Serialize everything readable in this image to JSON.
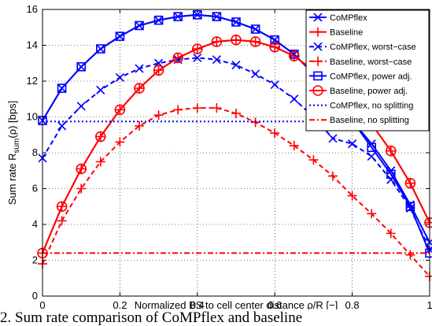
{
  "chart_data": {
    "type": "line",
    "xlabel": "Normalized BS to cell center distance ρ/R [−]",
    "ylabel_main": "Sum rate R",
    "ylabel_sub": "sum",
    "ylabel_tail": "(ρ) [bps]",
    "xlim": [
      0,
      1
    ],
    "ylim": [
      0,
      16
    ],
    "xticks": [
      0,
      0.2,
      0.4,
      0.6,
      0.8,
      1
    ],
    "xtick_labels": [
      "0",
      "0.2",
      "0.4",
      "0.6",
      "0.8",
      "1"
    ],
    "yticks": [
      0,
      2,
      4,
      6,
      8,
      10,
      12,
      14,
      16
    ],
    "ytick_labels": [
      "0",
      "2",
      "4",
      "6",
      "8",
      "10",
      "12",
      "14",
      "16"
    ],
    "grid": true,
    "legend_position": "top-right",
    "series": [
      {
        "name": "CoMPflex",
        "color": "#0000ff",
        "dash": "solid",
        "marker": "x",
        "x": [
          0,
          0.05,
          0.1,
          0.15,
          0.2,
          0.25,
          0.3,
          0.35,
          0.4,
          0.45,
          0.5,
          0.55,
          0.6,
          0.65,
          0.7,
          0.75,
          0.8,
          0.85,
          0.9,
          0.95,
          1.0
        ],
        "y": [
          9.8,
          11.6,
          12.8,
          13.8,
          14.5,
          15.1,
          15.4,
          15.6,
          15.7,
          15.6,
          15.3,
          14.9,
          14.3,
          13.5,
          12.4,
          11.1,
          9.8,
          8.5,
          7.0,
          5.1,
          3.0
        ]
      },
      {
        "name": "Baseline",
        "color": "#ff0000",
        "dash": "solid",
        "marker": "+",
        "x": [
          0,
          0.05,
          0.1,
          0.15,
          0.2,
          0.25,
          0.3,
          0.35,
          0.4,
          0.45,
          0.5,
          0.55,
          0.6,
          0.65,
          0.7,
          0.75,
          0.8,
          0.85,
          0.9,
          0.95,
          1.0
        ],
        "y": [
          2.4,
          5.0,
          7.1,
          8.9,
          10.4,
          11.6,
          12.6,
          13.3,
          13.8,
          14.2,
          14.3,
          14.2,
          13.9,
          13.4,
          12.6,
          11.4,
          10.3,
          9.6,
          8.1,
          6.3,
          4.1
        ]
      },
      {
        "name": "CoMPflex, worst−case",
        "color": "#0000ff",
        "dash": "dash",
        "marker": "x",
        "x": [
          0,
          0.05,
          0.1,
          0.15,
          0.2,
          0.25,
          0.3,
          0.35,
          0.4,
          0.45,
          0.5,
          0.55,
          0.6,
          0.65,
          0.7,
          0.75,
          0.8,
          0.85,
          0.9,
          0.95,
          1.0
        ],
        "y": [
          7.7,
          9.5,
          10.6,
          11.5,
          12.2,
          12.7,
          13.0,
          13.2,
          13.3,
          13.2,
          12.9,
          12.4,
          11.8,
          11.0,
          10.0,
          8.8,
          8.5,
          7.8,
          6.5,
          4.9,
          2.6
        ]
      },
      {
        "name": "Baseline, worst−case",
        "color": "#ff0000",
        "dash": "dash",
        "marker": "+",
        "x": [
          0,
          0.05,
          0.1,
          0.15,
          0.2,
          0.25,
          0.3,
          0.35,
          0.4,
          0.45,
          0.5,
          0.55,
          0.6,
          0.65,
          0.7,
          0.75,
          0.8,
          0.85,
          0.9,
          0.95,
          1.0
        ],
        "y": [
          1.8,
          4.2,
          6.0,
          7.5,
          8.6,
          9.5,
          10.1,
          10.4,
          10.5,
          10.5,
          10.2,
          9.7,
          9.1,
          8.4,
          7.6,
          6.7,
          5.6,
          4.6,
          3.5,
          2.3,
          1.1
        ]
      },
      {
        "name": "CoMPflex, power adj.",
        "color": "#0000ff",
        "dash": "solid",
        "marker": "square",
        "x": [
          0,
          0.05,
          0.1,
          0.15,
          0.2,
          0.25,
          0.3,
          0.35,
          0.4,
          0.45,
          0.5,
          0.55,
          0.6,
          0.65,
          0.7,
          0.75,
          0.8,
          0.85,
          0.9,
          0.95,
          1.0
        ],
        "y": [
          9.8,
          11.6,
          12.8,
          13.8,
          14.5,
          15.1,
          15.4,
          15.6,
          15.7,
          15.6,
          15.3,
          14.9,
          14.3,
          13.5,
          12.4,
          11.1,
          9.8,
          8.3,
          6.8,
          5.0,
          2.4
        ]
      },
      {
        "name": "Baseline, power adj.",
        "color": "#ff0000",
        "dash": "solid",
        "marker": "circle",
        "x": [
          0,
          0.05,
          0.1,
          0.15,
          0.2,
          0.25,
          0.3,
          0.35,
          0.4,
          0.45,
          0.5,
          0.55,
          0.6,
          0.65,
          0.7,
          0.75,
          0.8,
          0.85,
          0.9,
          0.95,
          1.0
        ],
        "y": [
          2.4,
          5.0,
          7.1,
          8.9,
          10.4,
          11.6,
          12.6,
          13.3,
          13.8,
          14.2,
          14.3,
          14.2,
          13.9,
          13.4,
          12.6,
          11.4,
          10.3,
          9.6,
          8.1,
          6.3,
          4.1
        ]
      },
      {
        "name": "CoMPflex, no splitting",
        "color": "#0000ff",
        "dash": "dot",
        "marker": "none",
        "x": [
          0,
          1
        ],
        "y": [
          9.75,
          9.75
        ]
      },
      {
        "name": "Baseline, no splitting",
        "color": "#ff0000",
        "dash": "dashdot",
        "marker": "none",
        "x": [
          0,
          1
        ],
        "y": [
          2.4,
          2.4
        ]
      }
    ]
  },
  "caption": "2.  Sum rate comparison of CoMPflex and baseline"
}
